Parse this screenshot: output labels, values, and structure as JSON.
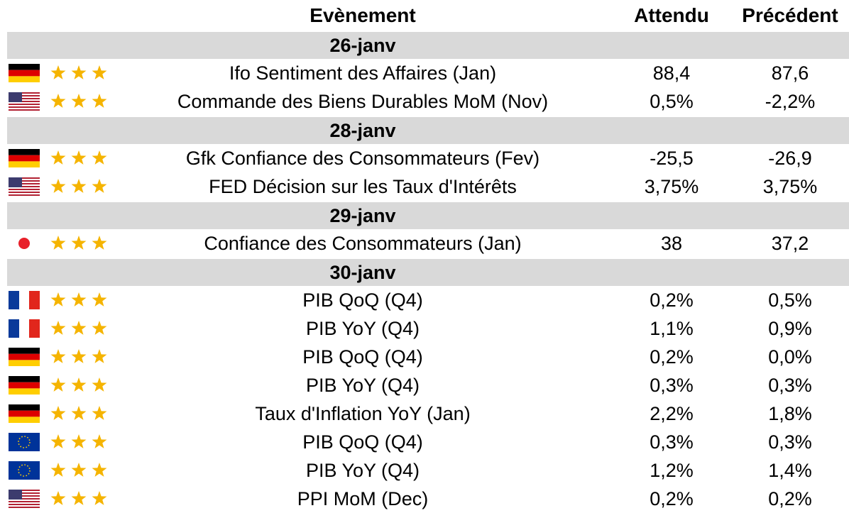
{
  "header": {
    "event": "Evènement",
    "expected": "Attendu",
    "previous": "Précédent"
  },
  "days": [
    {
      "date": "26-janv",
      "events": [
        {
          "name": "Ifo Sentiment des Affaires (Jan)",
          "expected": "88,4",
          "previous": "87,6"
        },
        {
          "name": "Commande des Biens Durables MoM (Nov)",
          "expected": "0,5%",
          "previous": "-2,2%"
        }
      ]
    },
    {
      "date": "28-janv",
      "events": [
        {
          "name": "Gfk Confiance des Consommateurs (Fev)",
          "expected": "-25,5",
          "previous": "-26,9"
        },
        {
          "name": "FED Décision sur les Taux d'Intérêts",
          "expected": "3,75%",
          "previous": "3,75%"
        }
      ]
    },
    {
      "date": "29-janv",
      "events": [
        {
          "name": "Confiance des Consommateurs (Jan)",
          "expected": "38",
          "previous": "37,2"
        }
      ]
    },
    {
      "date": "30-janv",
      "events": [
        {
          "name": "PIB QoQ (Q4)",
          "expected": "0,2%",
          "previous": "0,5%"
        },
        {
          "name": "PIB YoY (Q4)",
          "expected": "1,1%",
          "previous": "0,9%"
        },
        {
          "name": "PIB QoQ (Q4)",
          "expected": "0,2%",
          "previous": "0,0%"
        },
        {
          "name": "PIB YoY (Q4)",
          "expected": "0,3%",
          "previous": "0,3%"
        },
        {
          "name": "Taux d'Inflation YoY (Jan)",
          "expected": "2,2%",
          "previous": "1,8%"
        },
        {
          "name": "PIB QoQ (Q4)",
          "expected": "0,3%",
          "previous": "0,3%"
        },
        {
          "name": "PIB YoY (Q4)",
          "expected": "1,2%",
          "previous": "1,4%"
        },
        {
          "name": "PPI MoM (Dec)",
          "expected": "0,2%",
          "previous": "0,2%"
        }
      ]
    }
  ]
}
